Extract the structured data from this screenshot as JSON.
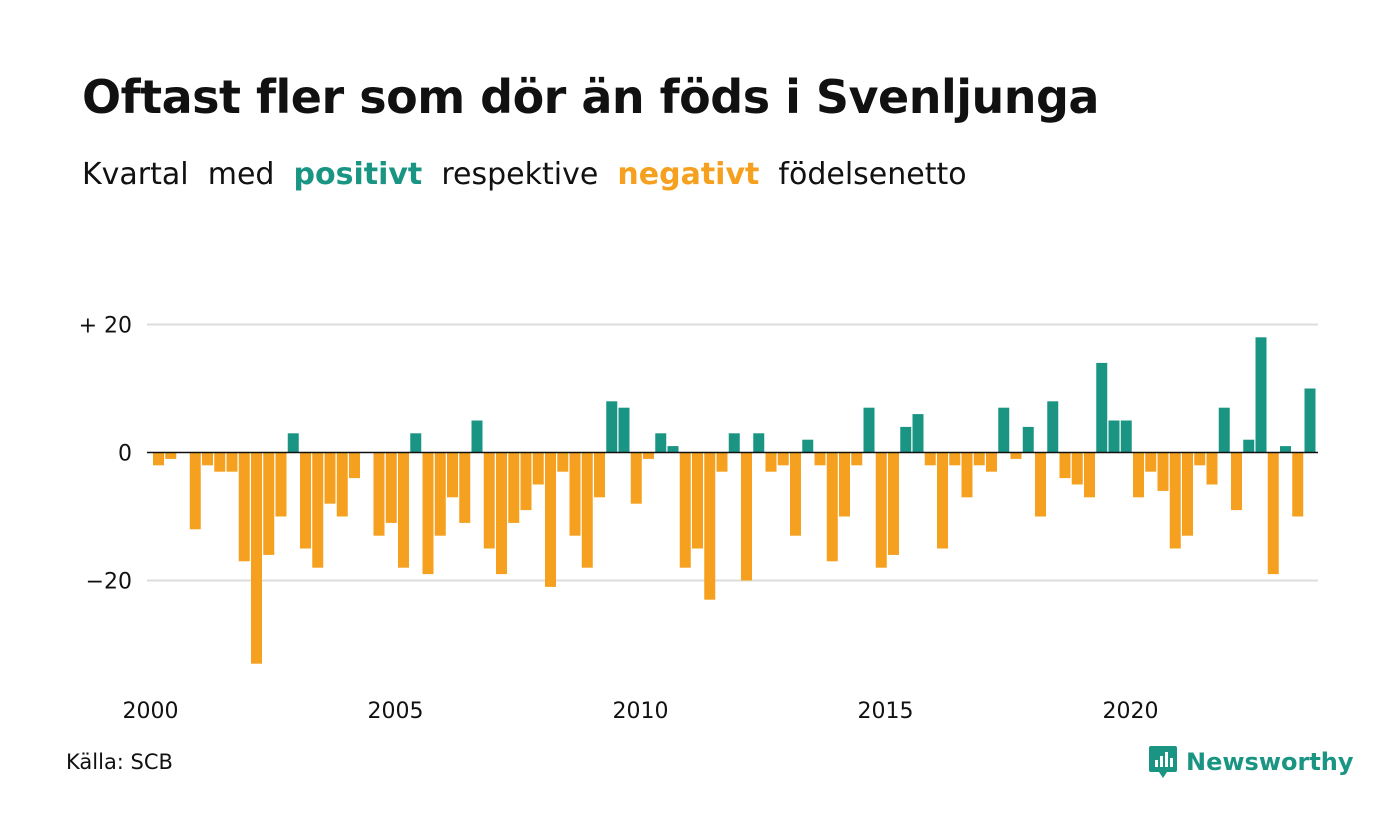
{
  "title": "Oftast fler som dör än föds i Svenljunga",
  "subtitle": {
    "part1": "Kvartal",
    "part2": "med",
    "positive": "positivt",
    "part3": "respektive",
    "negative": "negativt",
    "part4": "födelsenetto"
  },
  "source": "Källa: SCB",
  "brand": "Newsworthy",
  "colors": {
    "positive": "#1a9584",
    "negative": "#f5a01e",
    "grid": "#dddddd"
  },
  "chart_data": {
    "type": "bar",
    "start_year": 2000,
    "quarters_per_year": 4,
    "ylim": [
      -35,
      22
    ],
    "y_ticks": [
      20,
      0,
      -20
    ],
    "y_tick_labels": [
      "+ 20",
      "0",
      "−20"
    ],
    "x_tick_labels": [
      "2000",
      "2005",
      "2010",
      "2015",
      "2020"
    ],
    "values": [
      -2,
      -1,
      0,
      -12,
      -2,
      -3,
      -3,
      -17,
      -33,
      -16,
      -10,
      3,
      -15,
      -18,
      -8,
      -10,
      -4,
      0,
      -13,
      -11,
      -18,
      3,
      -19,
      -13,
      -7,
      -11,
      5,
      -15,
      -19,
      -11,
      -9,
      -5,
      -21,
      -3,
      -13,
      -18,
      -7,
      8,
      7,
      -8,
      -1,
      3,
      1,
      -18,
      -15,
      -23,
      -3,
      3,
      -20,
      3,
      -3,
      -2,
      -13,
      2,
      -2,
      -17,
      -10,
      -2,
      7,
      -18,
      -16,
      4,
      6,
      -2,
      -15,
      -2,
      -7,
      -2,
      -3,
      7,
      -1,
      4,
      -10,
      8,
      -4,
      -5,
      -7,
      14,
      5,
      5,
      -7,
      -3,
      -6,
      -15,
      -13,
      -2,
      -5,
      7,
      -9,
      2,
      18,
      -19,
      1,
      -10,
      10
    ]
  }
}
